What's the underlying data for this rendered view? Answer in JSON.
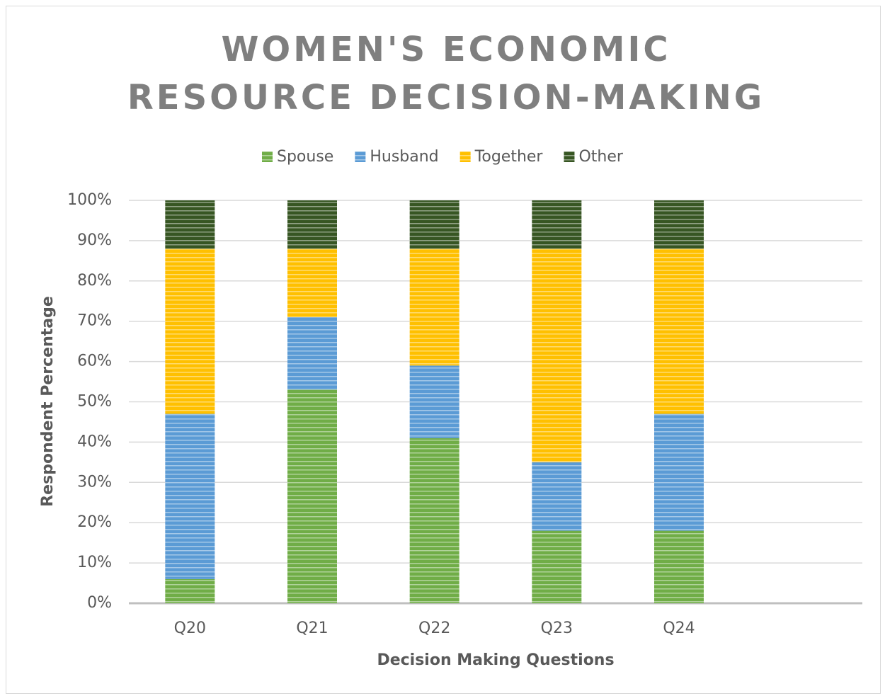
{
  "chart_data": {
    "type": "stacked_bar",
    "title": "WOMEN'S ECONOMIC RESOURCE DECISION-MAKING",
    "x_label": "Decision Making Questions",
    "y_label": "Respondent Percentage",
    "categories": [
      "Q20",
      "Q21",
      "Q22",
      "Q23",
      "Q24",
      null
    ],
    "series": [
      {
        "name": "Spouse",
        "color": "#70ad47",
        "values": [
          6,
          53,
          41,
          18,
          18,
          null
        ]
      },
      {
        "name": "Husband",
        "color": "#5b9bd5",
        "values": [
          41,
          18,
          18,
          17,
          29,
          null
        ]
      },
      {
        "name": "Together",
        "color": "#ffc000",
        "values": [
          41,
          17,
          29,
          53,
          41,
          null
        ]
      },
      {
        "name": "Other",
        "color": "#375623",
        "values": [
          12,
          12,
          12,
          12,
          12,
          null
        ]
      }
    ],
    "ylim": [
      0,
      100
    ],
    "yticks": [
      {
        "value": 0,
        "label": "0%"
      },
      {
        "value": 10,
        "label": "10%"
      },
      {
        "value": 20,
        "label": "20%"
      },
      {
        "value": 30,
        "label": "30%"
      },
      {
        "value": 40,
        "label": "40%"
      },
      {
        "value": 50,
        "label": "50%"
      },
      {
        "value": 60,
        "label": "60%"
      },
      {
        "value": 70,
        "label": "70%"
      },
      {
        "value": 80,
        "label": "80%"
      },
      {
        "value": 90,
        "label": "90%"
      },
      {
        "value": 100,
        "label": "100%"
      }
    ],
    "grid": true,
    "legend": "top"
  }
}
